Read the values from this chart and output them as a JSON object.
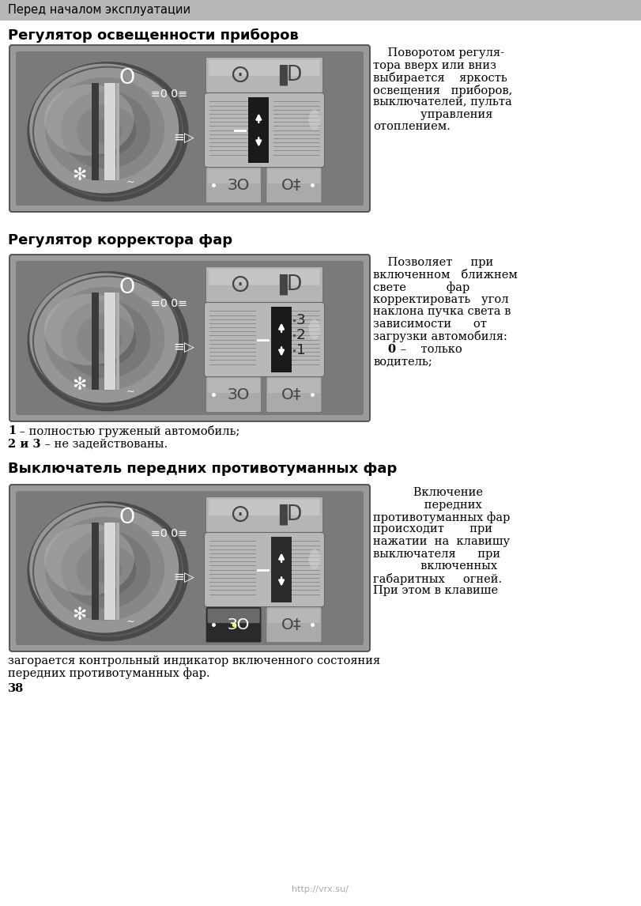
{
  "page_bg": "#ffffff",
  "header_bg": "#b8b8b8",
  "header_text": "Перед началом эксплуатации",
  "header_text_color": "#000000",
  "header_fontsize": 10.5,
  "section1_title": "Регулятор освещенности приборов",
  "section1_text_lines": [
    "    Поворотом регуля-",
    "тора вверх или вниз",
    "выбирается    яркость",
    "освещения   приборов,",
    "выключателей, пульта",
    "             управления",
    "отоплением."
  ],
  "section2_title": "Регулятор корректора фар",
  "section2_text_lines": [
    "    Позволяет     при",
    "включенном   ближнем",
    "свете           фар",
    "корректировать   угол",
    "наклона пучка света в",
    "зависимости      от",
    "загрузки автомобиля:"
  ],
  "section2_extra_line1": "    0  –    только",
  "section2_extra_line2": "водитель;",
  "section2_sub1": "1 – полностью груженый автомобиль;",
  "section2_sub2": "2 и 3 – не задействованы.",
  "section3_title": "Выключатель передних противотуманных фар",
  "section3_text_lines": [
    "           Включение",
    "              передних",
    "противотуманных фар",
    "происходит       при",
    "нажатии  на  клавишу",
    "выключателя      при",
    "             включенных",
    "габаритных     огней.",
    "При этом в клавише"
  ],
  "section3_bottom1": "загорается контрольный индикатор включенного состояния",
  "section3_bottom2": "передних противотуманных фар.",
  "page_number": "38",
  "footer_url": "http://vrx.su/",
  "text_fontsize": 10.5,
  "title_fontsize": 13
}
